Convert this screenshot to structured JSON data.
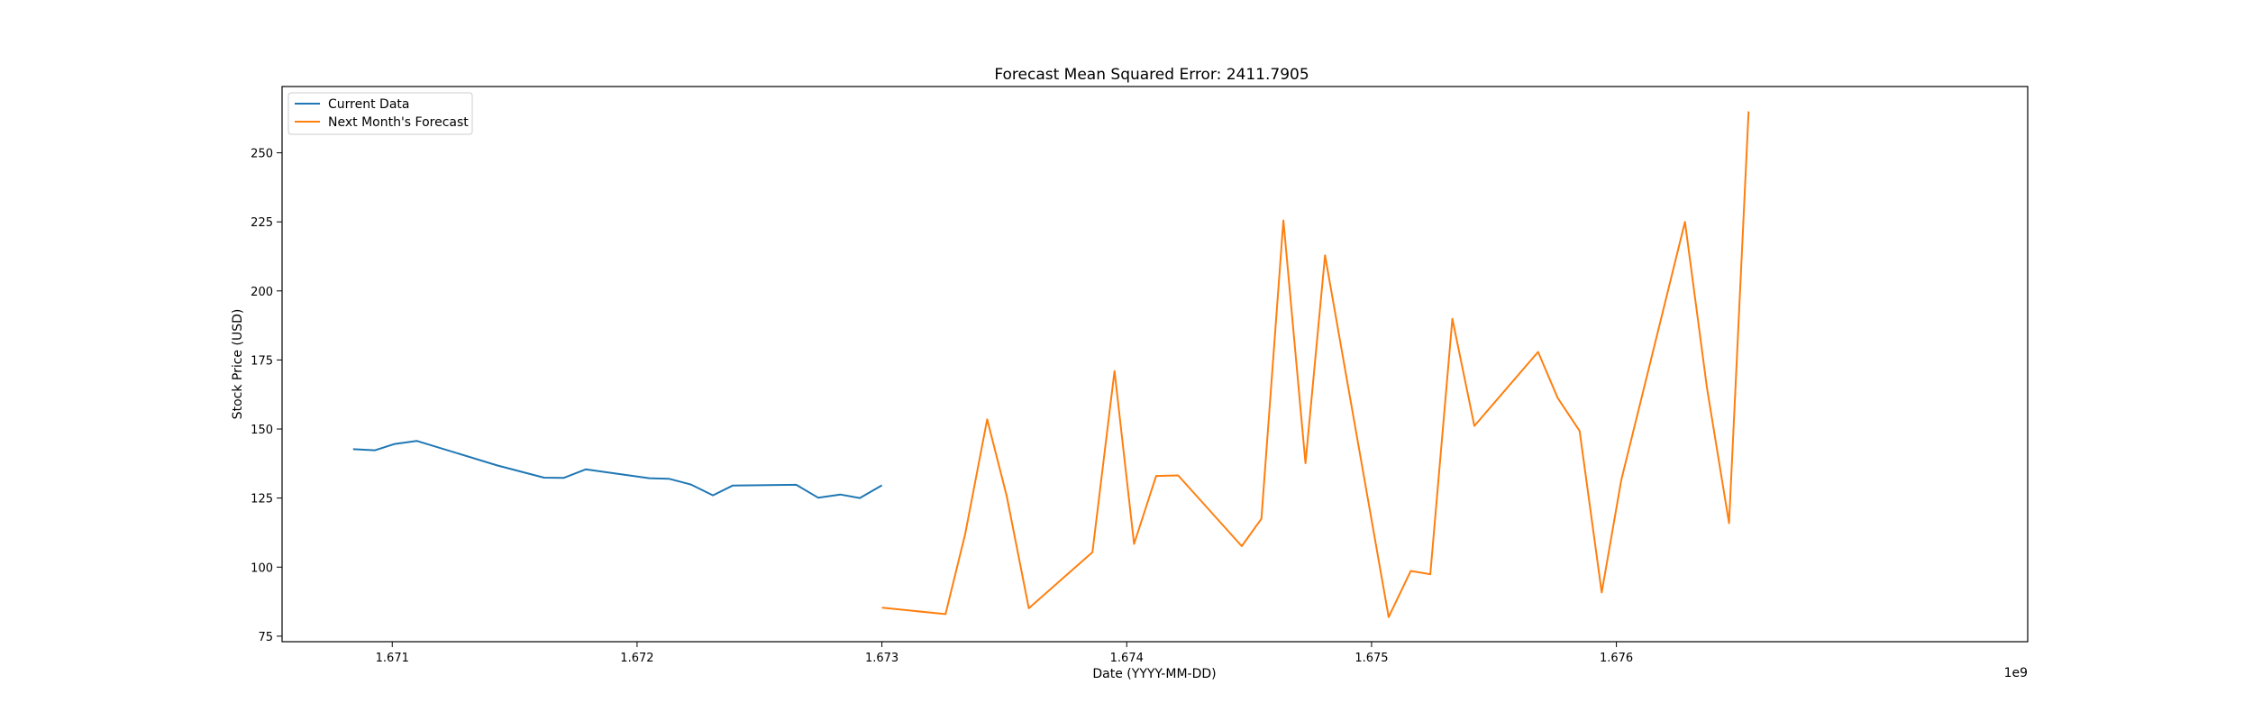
{
  "chart_data": {
    "type": "line",
    "title": "Forecast Mean Squared Error: 2411.7905",
    "xlabel": "Date (YYYY-MM-DD)",
    "ylabel": "Stock Price (USD)",
    "x_offset_label": "1e9",
    "xlim": [
      1.67055,
      1.67768
    ],
    "ylim": [
      73,
      274
    ],
    "x_ticks": [
      1.671,
      1.672,
      1.673,
      1.674,
      1.675,
      1.676
    ],
    "x_tick_labels": [
      "1.671",
      "1.672",
      "1.673",
      "1.674",
      "1.675",
      "1.676"
    ],
    "y_ticks": [
      75,
      100,
      125,
      150,
      175,
      200,
      225,
      250
    ],
    "y_tick_labels": [
      "75",
      "100",
      "125",
      "150",
      "175",
      "200",
      "225",
      "250"
    ],
    "grid": false,
    "legend_position": "upper-left",
    "series": [
      {
        "name": "Current Data",
        "color": "#1f77b4",
        "x": [
          1.67084,
          1.67093,
          1.67101,
          1.6711,
          1.67143,
          1.67162,
          1.6717,
          1.67179,
          1.67205,
          1.67213,
          1.67222,
          1.67231,
          1.67239,
          1.67265,
          1.67274,
          1.67283,
          1.67291,
          1.673
        ],
        "y": [
          142.7,
          142.3,
          144.6,
          145.7,
          136.8,
          132.4,
          132.3,
          135.4,
          132.2,
          132.0,
          129.9,
          126.0,
          129.5,
          129.8,
          125.1,
          126.3,
          125.0,
          129.6
        ]
      },
      {
        "name": "Next Month's Forecast",
        "color": "#ff7f0e",
        "x": [
          1.673,
          1.67326,
          1.67334,
          1.67343,
          1.67351,
          1.6736,
          1.67386,
          1.67395,
          1.67403,
          1.67412,
          1.67421,
          1.67447,
          1.67455,
          1.67464,
          1.67473,
          1.67481,
          1.67507,
          1.67516,
          1.67524,
          1.67533,
          1.67542,
          1.67568,
          1.67576,
          1.67585,
          1.67594,
          1.67602,
          1.67628,
          1.67637,
          1.67646,
          1.67654
        ],
        "y": [
          85.3,
          83.0,
          112.0,
          153.5,
          125.7,
          85.1,
          105.4,
          171.0,
          108.4,
          133.0,
          133.2,
          107.6,
          117.5,
          225.5,
          137.6,
          212.9,
          81.9,
          98.6,
          97.4,
          189.9,
          151.1,
          177.9,
          161.3,
          149.3,
          90.8,
          131.5,
          225.0,
          164.9,
          115.9,
          265.0
        ]
      }
    ]
  }
}
